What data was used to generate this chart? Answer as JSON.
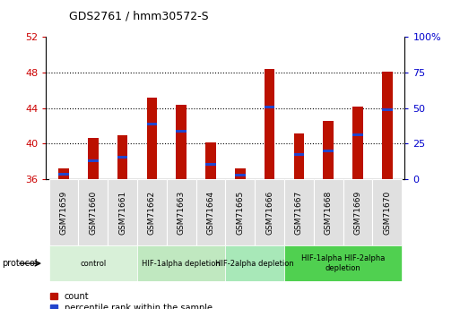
{
  "title": "GDS2761 / hmm30572-S",
  "samples": [
    "GSM71659",
    "GSM71660",
    "GSM71661",
    "GSM71662",
    "GSM71663",
    "GSM71664",
    "GSM71665",
    "GSM71666",
    "GSM71667",
    "GSM71668",
    "GSM71669",
    "GSM71670"
  ],
  "bar_base": 36,
  "counts": [
    37.2,
    40.6,
    41.0,
    45.2,
    44.4,
    40.1,
    37.2,
    48.4,
    41.2,
    42.6,
    44.2,
    48.1
  ],
  "percentile_values": [
    36.55,
    38.1,
    38.5,
    42.2,
    41.4,
    37.7,
    36.45,
    44.1,
    38.8,
    39.2,
    41.0,
    43.8
  ],
  "ylim_left": [
    36,
    52
  ],
  "ylim_right": [
    0,
    100
  ],
  "yticks_left": [
    36,
    40,
    44,
    48,
    52
  ],
  "yticks_right": [
    0,
    25,
    50,
    75,
    100
  ],
  "ytick_labels_right": [
    "0",
    "25",
    "50",
    "75",
    "100%"
  ],
  "bar_color": "#bb1100",
  "percentile_color": "#2244cc",
  "grid_color": "#000000",
  "protocol_groups": [
    {
      "label": "control",
      "start": 0,
      "end": 3,
      "color": "#d8f0d8"
    },
    {
      "label": "HIF-1alpha depletion",
      "start": 3,
      "end": 6,
      "color": "#c0e8c0"
    },
    {
      "label": "HIF-2alpha depletion",
      "start": 6,
      "end": 8,
      "color": "#a8e8b8"
    },
    {
      "label": "HIF-1alpha HIF-2alpha\ndepletion",
      "start": 8,
      "end": 12,
      "color": "#50d050"
    }
  ],
  "ylabel_left_color": "#cc0000",
  "ylabel_right_color": "#0000cc",
  "bar_width": 0.35
}
